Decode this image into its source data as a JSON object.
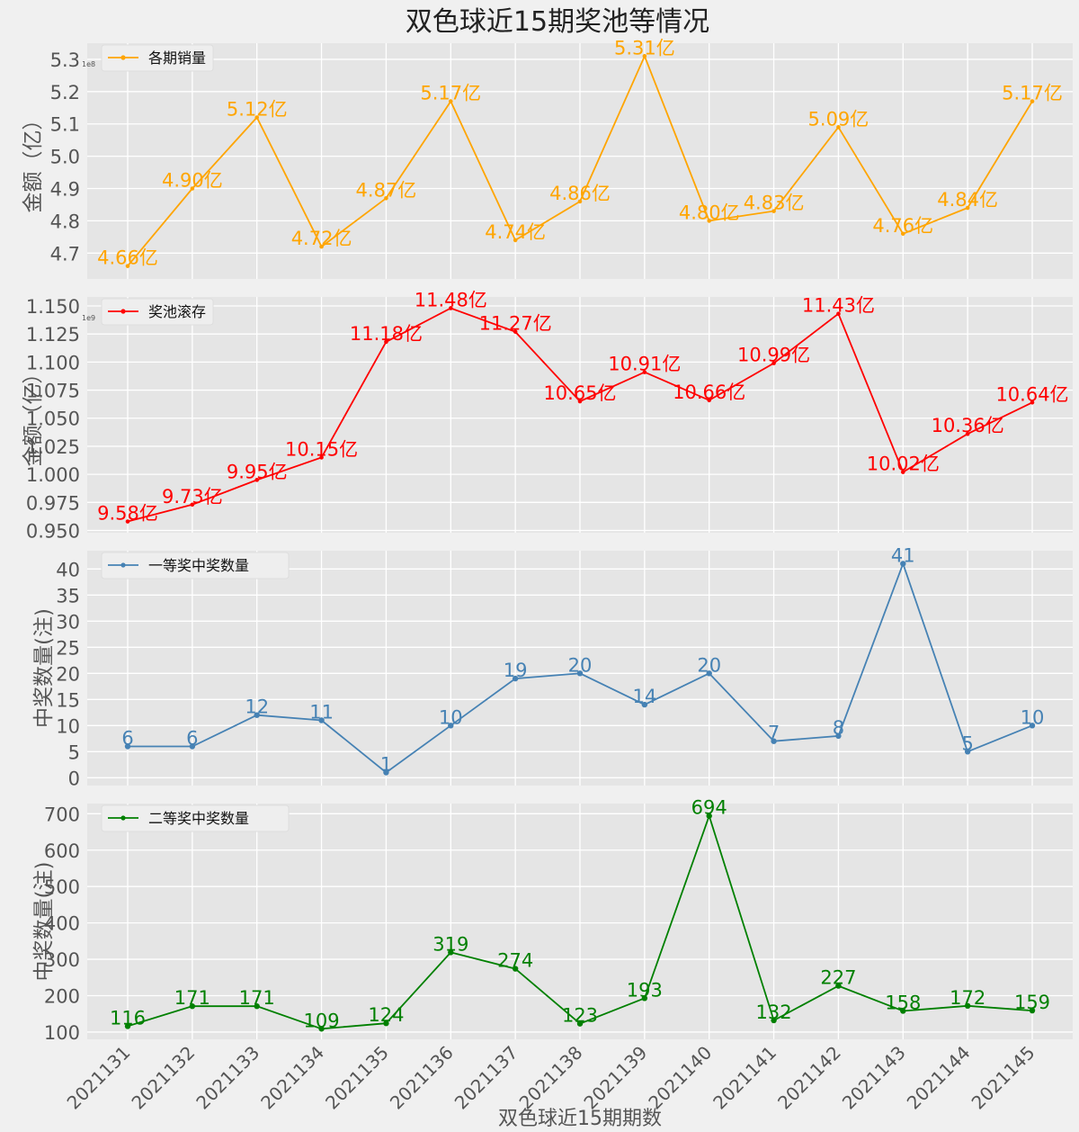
{
  "title": "双色球近15期奖池等情况",
  "xlabel": "双色球近15期期数",
  "colors": {
    "figure_bg": "#f0f0f0",
    "axes_bg": "#e5e5e5",
    "grid": "#ffffff",
    "text": "#555555"
  },
  "chart_data": [
    {
      "type": "line",
      "categories": [
        "2021131",
        "2021132",
        "2021133",
        "2021134",
        "2021135",
        "2021136",
        "2021137",
        "2021138",
        "2021139",
        "2021140",
        "2021141",
        "2021142",
        "2021143",
        "2021144",
        "2021145"
      ],
      "series": [
        {
          "name": "各期销量",
          "color": "#ffa500",
          "values": [
            466000000,
            490000000,
            512000000,
            472000000,
            487000000,
            517000000,
            474000000,
            486000000,
            531000000,
            480000000,
            483000000,
            509000000,
            476000000,
            484000000,
            517000000
          ]
        }
      ],
      "data_labels": [
        "4.66亿",
        "4.90亿",
        "5.12亿",
        "4.72亿",
        "4.87亿",
        "5.17亿",
        "4.74亿",
        "4.86亿",
        "5.31亿",
        "4.80亿",
        "4.83亿",
        "5.09亿",
        "4.76亿",
        "4.84亿",
        "5.17亿"
      ],
      "ylabel": "金额（亿）",
      "offset_text": "1e8",
      "ylim": [
        462000000,
        535000000
      ],
      "yticks": [
        470000000,
        480000000,
        490000000,
        500000000,
        510000000,
        520000000,
        530000000
      ],
      "ytick_labels": [
        "4.7",
        "4.8",
        "4.9",
        "5.0",
        "5.1",
        "5.2",
        "5.3"
      ],
      "legend": "top-left",
      "grid": true
    },
    {
      "type": "line",
      "categories": [
        "2021131",
        "2021132",
        "2021133",
        "2021134",
        "2021135",
        "2021136",
        "2021137",
        "2021138",
        "2021139",
        "2021140",
        "2021141",
        "2021142",
        "2021143",
        "2021144",
        "2021145"
      ],
      "series": [
        {
          "name": "奖池滚存",
          "color": "#ff0000",
          "values": [
            958000000,
            973000000,
            995000000,
            1015000000,
            1118000000,
            1148000000,
            1127000000,
            1065000000,
            1091000000,
            1066000000,
            1099000000,
            1143000000,
            1002000000,
            1036000000,
            1064000000
          ]
        }
      ],
      "data_labels": [
        "9.58亿",
        "9.73亿",
        "9.95亿",
        "10.15亿",
        "11.18亿",
        "11.48亿",
        "11.27亿",
        "10.65亿",
        "10.91亿",
        "10.66亿",
        "10.99亿",
        "11.43亿",
        "10.02亿",
        "10.36亿",
        "10.64亿"
      ],
      "ylabel": "金额（亿）",
      "offset_text": "1e9",
      "ylim": [
        948000000,
        1158000000
      ],
      "yticks": [
        950000000,
        975000000,
        1000000000,
        1025000000,
        1050000000,
        1075000000,
        1100000000,
        1125000000,
        1150000000
      ],
      "ytick_labels": [
        "0.950",
        "0.975",
        "1.000",
        "1.025",
        "1.050",
        "1.075",
        "1.100",
        "1.125",
        "1.150"
      ],
      "legend": "top-left",
      "grid": true
    },
    {
      "type": "line",
      "categories": [
        "2021131",
        "2021132",
        "2021133",
        "2021134",
        "2021135",
        "2021136",
        "2021137",
        "2021138",
        "2021139",
        "2021140",
        "2021141",
        "2021142",
        "2021143",
        "2021144",
        "2021145"
      ],
      "series": [
        {
          "name": "一等奖中奖数量",
          "color": "#4682b4",
          "values": [
            6,
            6,
            12,
            11,
            1,
            10,
            19,
            20,
            14,
            20,
            7,
            8,
            41,
            5,
            10
          ]
        }
      ],
      "data_labels": [
        "6",
        "6",
        "12",
        "11",
        "1",
        "10",
        "19",
        "20",
        "14",
        "20",
        "7",
        "8",
        "41",
        "5",
        "10"
      ],
      "ylabel": "中奖数量(注)",
      "offset_text": "",
      "ylim": [
        -1.5,
        43.5
      ],
      "yticks": [
        0,
        5,
        10,
        15,
        20,
        25,
        30,
        35,
        40
      ],
      "ytick_labels": [
        "0",
        "5",
        "10",
        "15",
        "20",
        "25",
        "30",
        "35",
        "40"
      ],
      "legend": "top-left",
      "grid": true
    },
    {
      "type": "line",
      "categories": [
        "2021131",
        "2021132",
        "2021133",
        "2021134",
        "2021135",
        "2021136",
        "2021137",
        "2021138",
        "2021139",
        "2021140",
        "2021141",
        "2021142",
        "2021143",
        "2021144",
        "2021145"
      ],
      "series": [
        {
          "name": "二等奖中奖数量",
          "color": "#008000",
          "values": [
            116,
            171,
            171,
            109,
            124,
            319,
            274,
            123,
            193,
            694,
            132,
            227,
            158,
            172,
            159
          ]
        }
      ],
      "data_labels": [
        "116",
        "171",
        "171",
        "109",
        "124",
        "319",
        "274",
        "123",
        "193",
        "694",
        "132",
        "227",
        "158",
        "172",
        "159"
      ],
      "ylabel": "中奖数量(注)",
      "offset_text": "",
      "ylim": [
        80,
        728
      ],
      "yticks": [
        100,
        200,
        300,
        400,
        500,
        600,
        700
      ],
      "ytick_labels": [
        "100",
        "200",
        "300",
        "400",
        "500",
        "600",
        "700"
      ],
      "legend": "top-left",
      "grid": true
    }
  ]
}
